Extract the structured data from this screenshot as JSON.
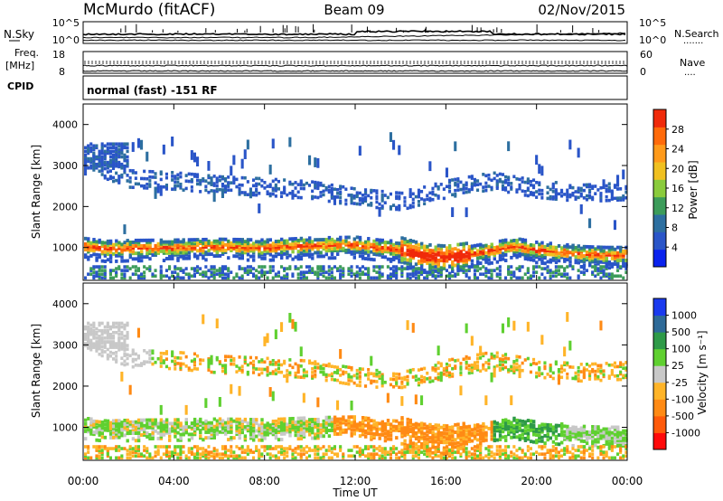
{
  "header": {
    "station": "McMurdo (fitACF)",
    "beam": "Beam 09",
    "date": "02/Nov/2015"
  },
  "noise_panel": {
    "left_label": "N.Sky",
    "right_label": "N.Search",
    "right_dots": "·······",
    "left_ticks": [
      "10^5",
      "10^0"
    ],
    "right_ticks": [
      "10^5",
      "10^0"
    ]
  },
  "freq_panel": {
    "left_label_1": "Freq.",
    "left_label_2": "[MHz]",
    "right_label": "Nave",
    "right_dots": "····",
    "left_ticks": [
      "18",
      "8"
    ],
    "right_ticks": [
      "60",
      "0"
    ]
  },
  "cpid_panel": {
    "label": "CPID",
    "mode_text": "normal (fast) -151 RF"
  },
  "colors": {
    "power_scale": [
      "#0a22ee",
      "#2a55c8",
      "#2d6fa0",
      "#3c9c5a",
      "#8acb3c",
      "#f0c020",
      "#ff9a1a",
      "#ff6a0a",
      "#f02a0a"
    ],
    "velocity_scale": [
      "#ff0a0a",
      "#ff5a0a",
      "#ff8a14",
      "#ffb428",
      "#c8c8c8",
      "#5fd030",
      "#2e9a48",
      "#2e6a98",
      "#1a3aee"
    ]
  },
  "chart_data": [
    {
      "type": "heatmap",
      "name": "power",
      "ylabel": "Slant Range [km]",
      "yticks": [
        "1000",
        "2000",
        "3000",
        "4000"
      ],
      "ylim": [
        200,
        4500
      ],
      "colorbar_label": "Power [dB]",
      "colorbar_ticks": [
        "4",
        "8",
        "12",
        "16",
        "20",
        "24",
        "28"
      ],
      "colorbar_range": [
        0,
        32
      ],
      "main_band_center_km": [
        [
          0,
          1000
        ],
        [
          1,
          930
        ],
        [
          2,
          950
        ],
        [
          4,
          960
        ],
        [
          6,
          980
        ],
        [
          8,
          960
        ],
        [
          10,
          1010
        ],
        [
          12,
          1030
        ],
        [
          13,
          960
        ],
        [
          14,
          920
        ],
        [
          15,
          760
        ],
        [
          16,
          720
        ],
        [
          17,
          800
        ],
        [
          18,
          900
        ],
        [
          19,
          1000
        ],
        [
          20,
          900
        ],
        [
          21,
          860
        ],
        [
          22,
          800
        ],
        [
          23,
          780
        ],
        [
          24,
          780
        ]
      ],
      "secondary_band_km": [
        [
          0,
          3150
        ],
        [
          1,
          2850
        ],
        [
          2,
          2650
        ],
        [
          4,
          2600
        ],
        [
          6,
          2500
        ],
        [
          8,
          2450
        ],
        [
          10,
          2380
        ],
        [
          12,
          2200
        ],
        [
          14,
          2100
        ],
        [
          16,
          2400
        ],
        [
          18,
          2600
        ],
        [
          20,
          2400
        ],
        [
          22,
          2300
        ],
        [
          24,
          2350
        ]
      ]
    },
    {
      "type": "heatmap",
      "name": "velocity",
      "ylabel": "Slant Range [km]",
      "yticks": [
        "1000",
        "2000",
        "3000",
        "4000"
      ],
      "ylim": [
        200,
        4500
      ],
      "colorbar_label": "Velocity [m s⁻¹]",
      "colorbar_ticks": [
        "-1000",
        "-500",
        "-100",
        "-25",
        "25",
        "100",
        "500",
        "1000"
      ],
      "colorbar_range": [
        -1250,
        1250
      ],
      "xlabel": "Time UT",
      "xticks": [
        "00:00",
        "04:00",
        "08:00",
        "12:00",
        "16:00",
        "20:00",
        "00:00"
      ],
      "xlim_hours": [
        0,
        24
      ]
    }
  ]
}
